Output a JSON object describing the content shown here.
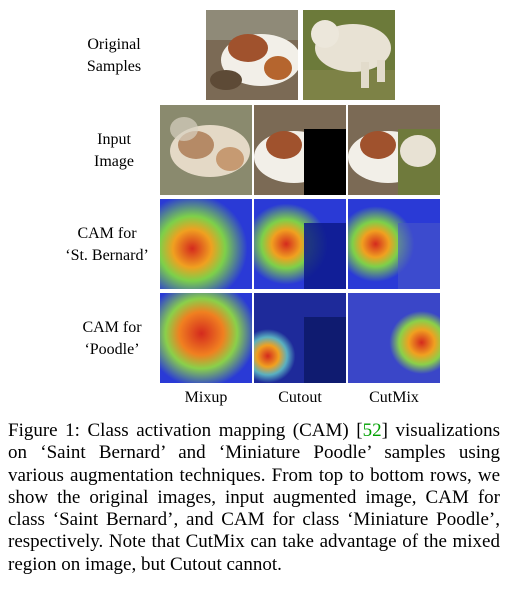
{
  "row_labels": {
    "original": [
      "Original",
      "Samples"
    ],
    "input": [
      "Input",
      "Image"
    ],
    "cam_stb": [
      "CAM for",
      "‘St. Bernard’"
    ],
    "cam_poodle": [
      "CAM for",
      "‘Poodle’"
    ]
  },
  "columns": [
    "Mixup",
    "Cutout",
    "CutMix"
  ],
  "caption": {
    "prefix": "Figure 1: Class activation mapping (CAM) [",
    "cite": "52",
    "suffix": "] visualizations on ‘Saint Bernard’ and ‘Miniature Poodle’ samples using various augmentation techniques. From top to bottom rows, we show the original images, input augmented image, CAM for class ‘Saint Bernard’, and CAM for class ‘Miniature Poodle’, respectively. Note that CutMix can take advantage of the mixed region on image, but Cutout cannot."
  },
  "colors": {
    "cite": "#00a000",
    "cutout_black": "#000000",
    "cam_hot": "#d42a1e",
    "cam_cold": "#2a3ad6"
  }
}
